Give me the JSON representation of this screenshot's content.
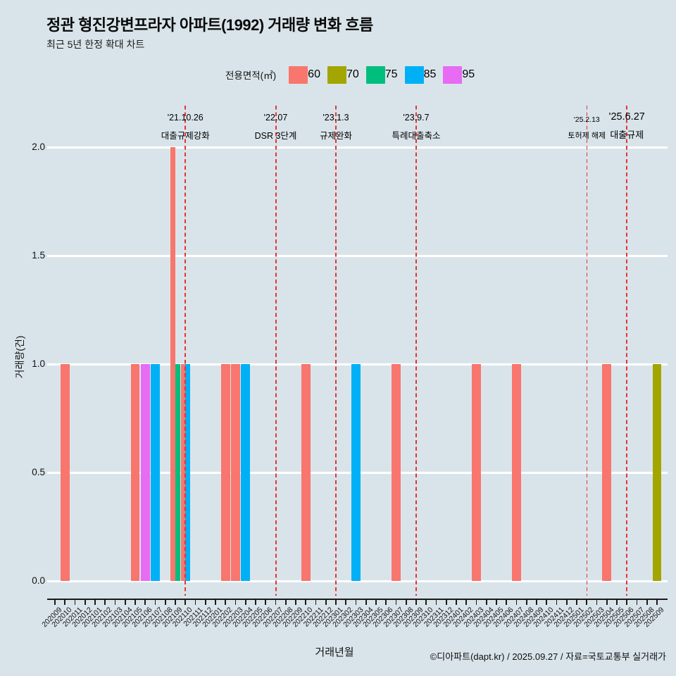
{
  "title": "정관 형진강변프라자 아파트(1992) 거래량 변화 흐름",
  "subtitle": "최근 5년 한정 확대 차트",
  "legend": {
    "label": "전용면적(㎡)",
    "items": [
      {
        "name": "60",
        "color": "#F8766D"
      },
      {
        "name": "70",
        "color": "#A3A500"
      },
      {
        "name": "75",
        "color": "#00BF7D"
      },
      {
        "name": "85",
        "color": "#00B0F6"
      },
      {
        "name": "95",
        "color": "#E76BF3"
      }
    ]
  },
  "chart_data": {
    "type": "bar",
    "title": "정관 형진강변프라자 아파트(1992) 거래량 변화 흐름",
    "subtitle": "최근 5년 한정 확대 차트",
    "xlabel": "거래년월",
    "ylabel": "거래량(건)",
    "ylim": [
      0,
      2
    ],
    "yticks": [
      "0.0",
      "0.5",
      "1.0",
      "1.5",
      "2.0"
    ],
    "grid": "horizontal-major-white",
    "legend_position": "top",
    "categories": [
      "202009",
      "202010",
      "202011",
      "202012",
      "202101",
      "202102",
      "202103",
      "202104",
      "202105",
      "202106",
      "202107",
      "202108",
      "202109",
      "202110",
      "202111",
      "202112",
      "202201",
      "202202",
      "202203",
      "202204",
      "202205",
      "202206",
      "202207",
      "202208",
      "202209",
      "202210",
      "202211",
      "202212",
      "202301",
      "202302",
      "202303",
      "202304",
      "202305",
      "202306",
      "202307",
      "202308",
      "202309",
      "202310",
      "202311",
      "202312",
      "202401",
      "202402",
      "202403",
      "202404",
      "202405",
      "202406",
      "202407",
      "202408",
      "202409",
      "202410",
      "202411",
      "202412",
      "202501",
      "202502",
      "202503",
      "202504",
      "202505",
      "202506",
      "202507",
      "202508",
      "202509"
    ],
    "bars": [
      {
        "month": "202010",
        "series": "60",
        "value": 1
      },
      {
        "month": "202105",
        "series": "60",
        "value": 1
      },
      {
        "month": "202106",
        "series": "95",
        "value": 1
      },
      {
        "month": "202107",
        "series": "85",
        "value": 1
      },
      {
        "month": "202109",
        "series": "60",
        "value": 2
      },
      {
        "month": "202109",
        "series": "75",
        "value": 1
      },
      {
        "month": "202110",
        "series": "60",
        "value": 1
      },
      {
        "month": "202110",
        "series": "85",
        "value": 1
      },
      {
        "month": "202202",
        "series": "60",
        "value": 1
      },
      {
        "month": "202203",
        "series": "60",
        "value": 1
      },
      {
        "month": "202204",
        "series": "85",
        "value": 1
      },
      {
        "month": "202210",
        "series": "60",
        "value": 1
      },
      {
        "month": "202303",
        "series": "85",
        "value": 1
      },
      {
        "month": "202307",
        "series": "60",
        "value": 1
      },
      {
        "month": "202403",
        "series": "60",
        "value": 1
      },
      {
        "month": "202407",
        "series": "60",
        "value": 1
      },
      {
        "month": "202504",
        "series": "60",
        "value": 1
      },
      {
        "month": "202509",
        "series": "70",
        "value": 1
      }
    ],
    "vlines": [
      {
        "date": "'21.10.26",
        "label": "대출규제강화",
        "month": "202110",
        "size": "normal",
        "color": "#e43434",
        "thickness": 2
      },
      {
        "date": "'22.07",
        "label": "DSR 3단계",
        "month": "202207",
        "size": "normal",
        "color": "#e43434",
        "thickness": 2
      },
      {
        "date": "'23.1.3",
        "label": "규제완화",
        "month": "202301",
        "size": "normal",
        "color": "#e43434",
        "thickness": 2
      },
      {
        "date": "'23.9.7",
        "label": "특례대출축소",
        "month": "202309",
        "size": "normal",
        "color": "#e43434",
        "thickness": 2
      },
      {
        "date": "'25.2.13",
        "label": "토허제 해제",
        "month": "202502",
        "size": "small",
        "color": "#e43434",
        "thickness": 1.2
      },
      {
        "date": "'25.6.27",
        "label": "대출규제",
        "month": "202506",
        "size": "large",
        "color": "#e43434",
        "thickness": 2
      }
    ]
  },
  "footer": {
    "caption": "©디아파트(dapt.kr) / 2025.09.27 / 자료=국토교통부 실거래가"
  }
}
